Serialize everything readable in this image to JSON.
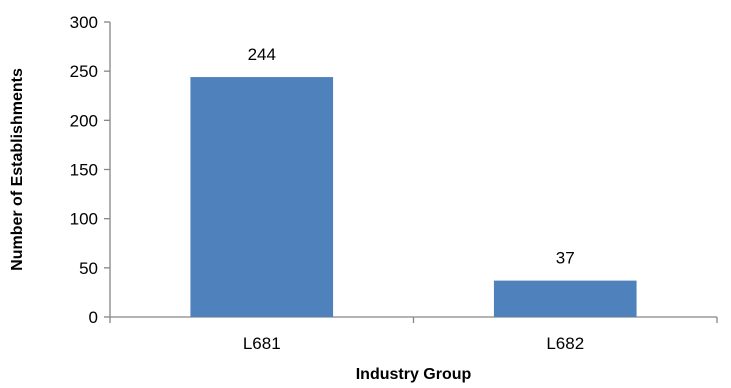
{
  "chart_data": {
    "type": "bar",
    "categories": [
      "L681",
      "L682"
    ],
    "values": [
      244,
      37
    ],
    "data_labels": [
      "244",
      "37"
    ],
    "xlabel": "Industry Group",
    "ylabel": "Number of Establishments",
    "ylim": [
      0,
      300
    ],
    "yticks": [
      0,
      50,
      100,
      150,
      200,
      250,
      300
    ],
    "ytick_labels": [
      "0",
      "50",
      "100",
      "150",
      "200",
      "250",
      "300"
    ],
    "grid": false,
    "legend": "none",
    "bar_color": "#4f81bd",
    "axis_color": "#868686"
  }
}
